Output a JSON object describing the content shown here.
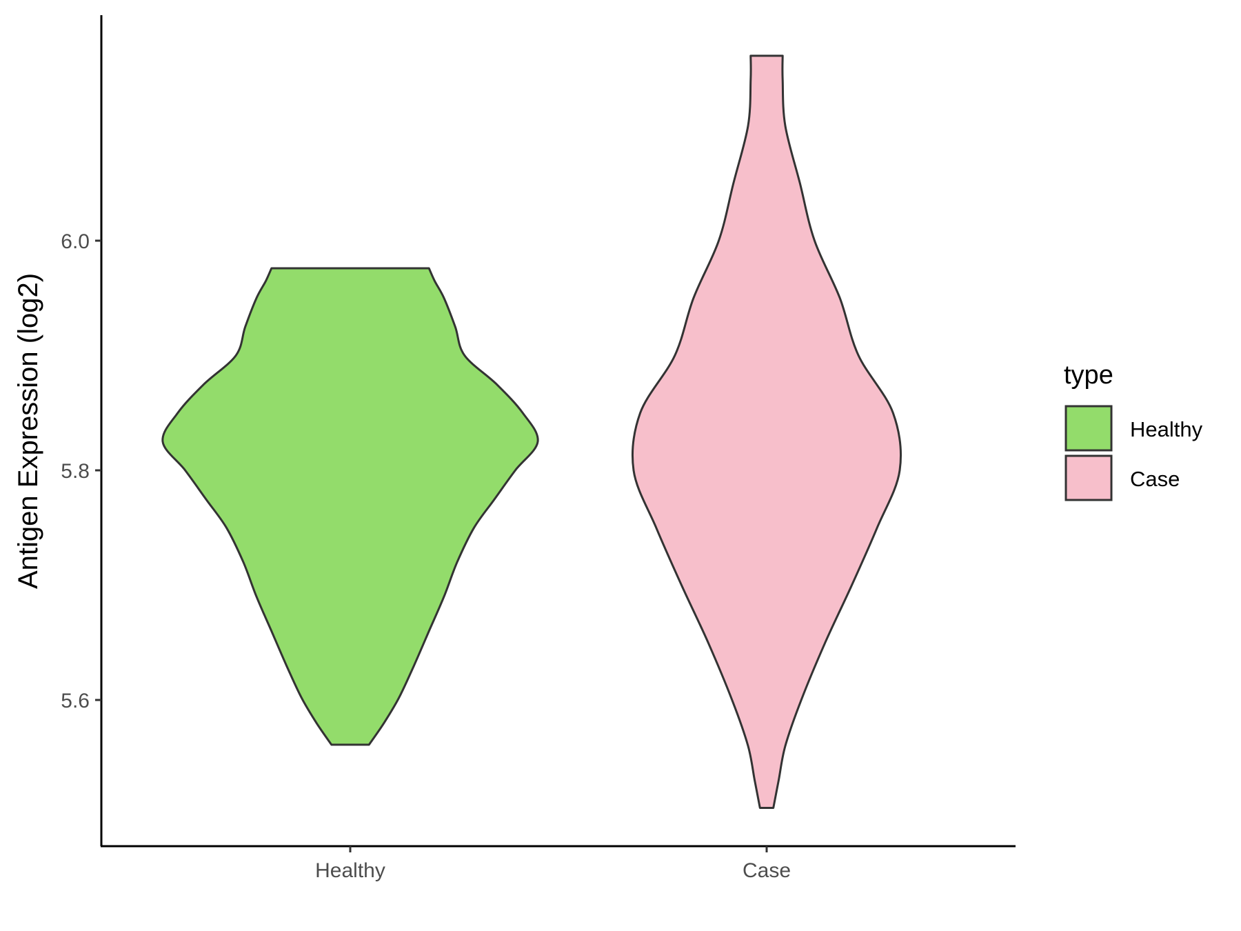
{
  "chart_data": {
    "type": "violin",
    "title": "",
    "xlabel": "",
    "ylabel": "Antigen Expression (log2)",
    "ylim": [
      5.47,
      6.19
    ],
    "yticks": [
      5.6,
      5.8,
      6.0
    ],
    "ytick_labels": [
      "5.6",
      "5.8",
      "6.0"
    ],
    "categories": [
      "Healthy",
      "Case"
    ],
    "grid": false,
    "legend": {
      "title": "type",
      "position": "right",
      "entries": [
        {
          "label": "Healthy",
          "color": "#93DC6B"
        },
        {
          "label": "Case",
          "color": "#F7BFCB"
        }
      ]
    },
    "series": [
      {
        "name": "Healthy",
        "color": "#93DC6B",
        "min": 5.561,
        "max": 5.976,
        "profile": [
          [
            5.561,
            0.1
          ],
          [
            5.58,
            0.18
          ],
          [
            5.602,
            0.26
          ],
          [
            5.63,
            0.34
          ],
          [
            5.66,
            0.42
          ],
          [
            5.69,
            0.5
          ],
          [
            5.72,
            0.57
          ],
          [
            5.75,
            0.66
          ],
          [
            5.775,
            0.77
          ],
          [
            5.8,
            0.88
          ],
          [
            5.825,
            1.0
          ],
          [
            5.85,
            0.92
          ],
          [
            5.875,
            0.78
          ],
          [
            5.9,
            0.61
          ],
          [
            5.925,
            0.56
          ],
          [
            5.95,
            0.5
          ],
          [
            5.965,
            0.45
          ],
          [
            5.976,
            0.42
          ]
        ]
      },
      {
        "name": "Case",
        "color": "#F7BFCB",
        "min": 5.506,
        "max": 6.161,
        "profile": [
          [
            5.506,
            0.05
          ],
          [
            5.53,
            0.09
          ],
          [
            5.56,
            0.14
          ],
          [
            5.6,
            0.26
          ],
          [
            5.65,
            0.44
          ],
          [
            5.7,
            0.64
          ],
          [
            5.75,
            0.83
          ],
          [
            5.8,
            1.0
          ],
          [
            5.85,
            0.95
          ],
          [
            5.9,
            0.69
          ],
          [
            5.95,
            0.55
          ],
          [
            6.0,
            0.36
          ],
          [
            6.05,
            0.25
          ],
          [
            6.1,
            0.14
          ],
          [
            6.14,
            0.12
          ],
          [
            6.161,
            0.12
          ]
        ]
      }
    ]
  }
}
